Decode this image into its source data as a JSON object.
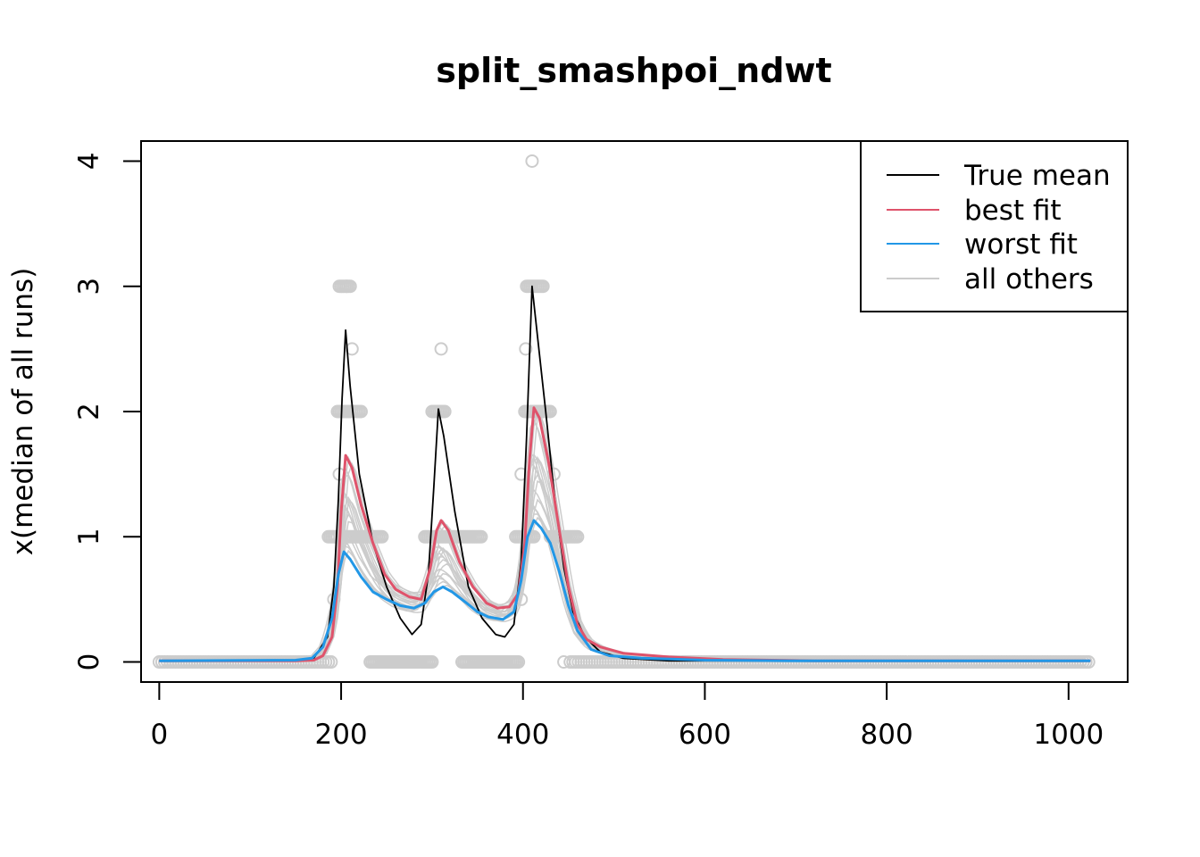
{
  "chart_data": {
    "type": "line",
    "title": "split_smashpoi_ndwt",
    "xlabel": "",
    "ylabel": "x(median of all runs)",
    "xlim": [
      -20,
      1065
    ],
    "ylim": [
      -0.16,
      4.16
    ],
    "x_ticks": [
      0,
      200,
      400,
      600,
      800,
      1000
    ],
    "y_ticks": [
      0,
      1,
      2,
      3,
      4
    ],
    "legend_position": "top-right",
    "grid": false,
    "colors": {
      "true_mean": "#000000",
      "best_fit": "#DF536B",
      "worst_fit": "#2297E6",
      "all_others": "#CCCCCC",
      "points": "#CCCCCC"
    },
    "series": [
      {
        "name": "True mean",
        "color": "#000000",
        "points": [
          [
            0,
            0.01
          ],
          [
            150,
            0.01
          ],
          [
            170,
            0.03
          ],
          [
            185,
            0.2
          ],
          [
            192,
            0.6
          ],
          [
            197,
            1.3
          ],
          [
            201,
            2.1
          ],
          [
            205,
            2.65
          ],
          [
            210,
            2.2
          ],
          [
            220,
            1.5
          ],
          [
            235,
            0.95
          ],
          [
            250,
            0.6
          ],
          [
            265,
            0.35
          ],
          [
            278,
            0.22
          ],
          [
            288,
            0.3
          ],
          [
            296,
            0.7
          ],
          [
            302,
            1.4
          ],
          [
            307,
            2.02
          ],
          [
            313,
            1.8
          ],
          [
            325,
            1.2
          ],
          [
            340,
            0.6
          ],
          [
            355,
            0.35
          ],
          [
            370,
            0.22
          ],
          [
            380,
            0.2
          ],
          [
            390,
            0.3
          ],
          [
            398,
            0.8
          ],
          [
            404,
            1.8
          ],
          [
            410,
            3.0
          ],
          [
            416,
            2.6
          ],
          [
            425,
            2.0
          ],
          [
            435,
            1.3
          ],
          [
            445,
            0.75
          ],
          [
            455,
            0.4
          ],
          [
            468,
            0.2
          ],
          [
            485,
            0.08
          ],
          [
            510,
            0.03
          ],
          [
            560,
            0.01
          ],
          [
            1024,
            0.01
          ]
        ]
      },
      {
        "name": "best fit",
        "color": "#DF536B",
        "points": [
          [
            0,
            0.01
          ],
          [
            150,
            0.01
          ],
          [
            170,
            0.015
          ],
          [
            180,
            0.05
          ],
          [
            190,
            0.2
          ],
          [
            196,
            0.6
          ],
          [
            200,
            1.2
          ],
          [
            205,
            1.65
          ],
          [
            212,
            1.55
          ],
          [
            222,
            1.25
          ],
          [
            235,
            0.95
          ],
          [
            248,
            0.7
          ],
          [
            260,
            0.58
          ],
          [
            275,
            0.52
          ],
          [
            288,
            0.5
          ],
          [
            298,
            0.75
          ],
          [
            305,
            1.05
          ],
          [
            310,
            1.13
          ],
          [
            318,
            1.05
          ],
          [
            330,
            0.8
          ],
          [
            345,
            0.6
          ],
          [
            360,
            0.47
          ],
          [
            372,
            0.43
          ],
          [
            385,
            0.44
          ],
          [
            395,
            0.55
          ],
          [
            402,
            0.95
          ],
          [
            407,
            1.6
          ],
          [
            412,
            2.03
          ],
          [
            418,
            1.95
          ],
          [
            428,
            1.6
          ],
          [
            440,
            1.05
          ],
          [
            450,
            0.6
          ],
          [
            460,
            0.3
          ],
          [
            470,
            0.18
          ],
          [
            485,
            0.12
          ],
          [
            510,
            0.07
          ],
          [
            560,
            0.04
          ],
          [
            620,
            0.02
          ],
          [
            720,
            0.01
          ],
          [
            1024,
            0.01
          ]
        ]
      },
      {
        "name": "worst fit",
        "color": "#2297E6",
        "points": [
          [
            0,
            0.01
          ],
          [
            150,
            0.015
          ],
          [
            168,
            0.03
          ],
          [
            180,
            0.12
          ],
          [
            190,
            0.35
          ],
          [
            197,
            0.7
          ],
          [
            203,
            0.88
          ],
          [
            210,
            0.82
          ],
          [
            222,
            0.68
          ],
          [
            235,
            0.56
          ],
          [
            250,
            0.5
          ],
          [
            265,
            0.45
          ],
          [
            280,
            0.43
          ],
          [
            292,
            0.47
          ],
          [
            302,
            0.56
          ],
          [
            312,
            0.6
          ],
          [
            322,
            0.56
          ],
          [
            338,
            0.47
          ],
          [
            350,
            0.4
          ],
          [
            362,
            0.36
          ],
          [
            378,
            0.34
          ],
          [
            390,
            0.4
          ],
          [
            398,
            0.65
          ],
          [
            405,
            1.0
          ],
          [
            412,
            1.13
          ],
          [
            420,
            1.07
          ],
          [
            430,
            0.95
          ],
          [
            440,
            0.72
          ],
          [
            450,
            0.45
          ],
          [
            460,
            0.25
          ],
          [
            475,
            0.1
          ],
          [
            495,
            0.05
          ],
          [
            530,
            0.03
          ],
          [
            600,
            0.015
          ],
          [
            700,
            0.01
          ],
          [
            1024,
            0.01
          ]
        ]
      }
    ],
    "all_others_count": 18,
    "point_clusters": [
      {
        "x_range": [
          0,
          190
        ],
        "y": 0
      },
      {
        "x_range": [
          186,
          196
        ],
        "y": 1
      },
      {
        "x_range": [
          196,
          222
        ],
        "y": 2
      },
      {
        "x_range": [
          198,
          210
        ],
        "y": 3
      },
      {
        "x_range": [
          205,
          245
        ],
        "y": 1
      },
      {
        "x_range": [
          232,
          300
        ],
        "y": 0
      },
      {
        "x_range": [
          292,
          355
        ],
        "y": 1
      },
      {
        "x_range": [
          300,
          315
        ],
        "y": 2
      },
      {
        "x_range": [
          333,
          395
        ],
        "y": 0
      },
      {
        "x_range": [
          392,
          412
        ],
        "y": 1
      },
      {
        "x_range": [
          402,
          430
        ],
        "y": 2
      },
      {
        "x_range": [
          404,
          422
        ],
        "y": 3
      },
      {
        "x_range": [
          430,
          460
        ],
        "y": 1
      },
      {
        "x_range": [
          452,
          1024
        ],
        "y": 0
      }
    ],
    "single_points": [
      [
        410,
        4
      ],
      [
        206,
        3
      ],
      [
        212,
        2.5
      ],
      [
        310,
        2.5
      ],
      [
        403,
        2.5
      ],
      [
        398,
        1.5
      ],
      [
        434,
        1.5
      ],
      [
        198,
        1.5
      ],
      [
        398,
        0.5
      ],
      [
        192,
        0.5
      ],
      [
        445,
        0
      ]
    ]
  }
}
